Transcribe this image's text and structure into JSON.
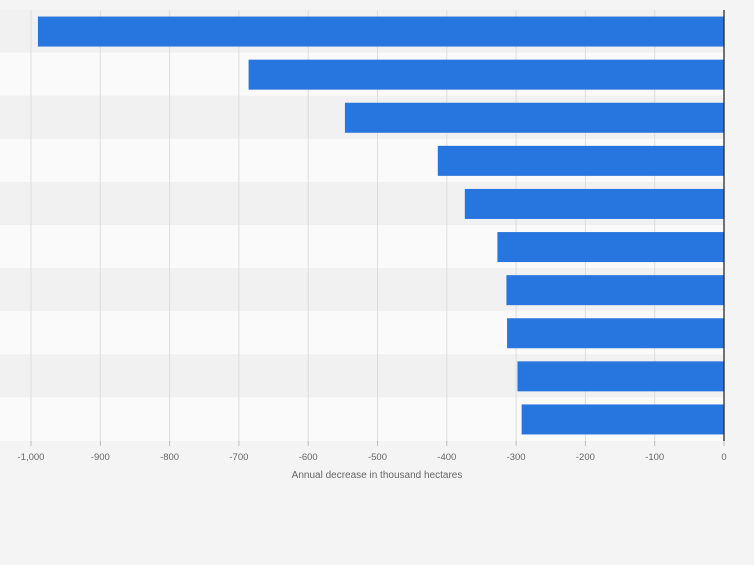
{
  "chart_data": {
    "type": "bar",
    "orientation": "horizontal",
    "categories": [
      "",
      "",
      "",
      "",
      "",
      "",
      "",
      "",
      "",
      ""
    ],
    "values": [
      -990,
      -686,
      -547,
      -413,
      -374,
      -327,
      -314,
      -313,
      -298,
      -292
    ],
    "title": "",
    "xlabel": "Annual decrease in thousand hectares",
    "ylabel": "",
    "xlim": [
      -1000,
      0
    ],
    "ticks": [
      -1000,
      -900,
      -800,
      -700,
      -600,
      -500,
      -400,
      -300,
      -200,
      -100,
      0
    ],
    "tick_labels": [
      "-1,000",
      "-900",
      "-800",
      "-700",
      "-600",
      "-500",
      "-400",
      "-300",
      "-200",
      "-100",
      "0"
    ],
    "grid": true,
    "colors": {
      "bar": "#2775de",
      "band_light": "#fafafa",
      "band_dark": "#f1f1f1",
      "gridline": "#dddddd",
      "baseline": "#2b2b2b",
      "tick_text": "#666666",
      "axis_label": "#666666"
    }
  }
}
